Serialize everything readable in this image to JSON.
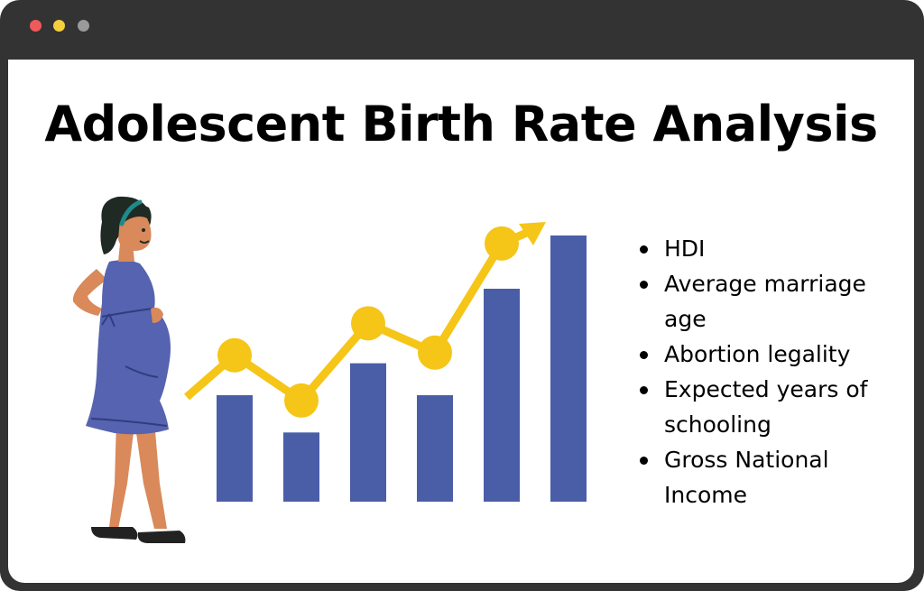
{
  "window": {
    "controls": [
      "close",
      "minimize",
      "maximize"
    ],
    "colors": {
      "frame": "#333333",
      "close": "#f05a5a",
      "minimize": "#f4d03f",
      "maximize": "#9a9a9a"
    }
  },
  "title": "Adolescent Birth Rate Analysis",
  "factors": [
    "HDI",
    "Average marriage age",
    "Abortion legality",
    "Expected years of schooling",
    "Gross National Income"
  ],
  "illustration": {
    "figure": "pregnant-woman",
    "bar_levels": [
      0.4,
      0.26,
      0.52,
      0.4,
      0.8,
      1.0
    ],
    "trend_levels": [
      0.55,
      0.38,
      0.67,
      0.56,
      0.97
    ],
    "colors": {
      "bars": "#4a5ea8",
      "trend": "#f5c518",
      "dress": "#5563b0",
      "skin": "#d9895a",
      "hair": "#1f2a24",
      "headband": "#1f8a8a"
    }
  }
}
